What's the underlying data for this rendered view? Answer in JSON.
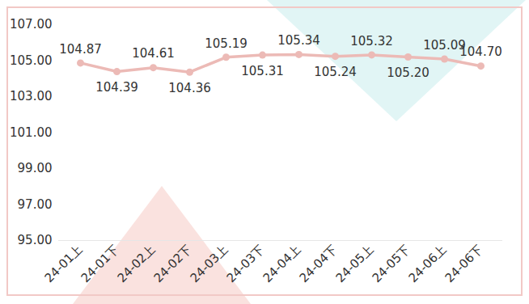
{
  "chart_data": {
    "type": "line",
    "categories": [
      "24-01上",
      "24-01下",
      "24-02上",
      "24-02下",
      "24-03上",
      "24-03下",
      "24-04上",
      "24-04下",
      "24-05上",
      "24-05下",
      "24-06上",
      "24-06下"
    ],
    "values": [
      104.87,
      104.39,
      104.61,
      104.36,
      105.19,
      105.31,
      105.34,
      105.24,
      105.32,
      105.2,
      105.09,
      104.7
    ],
    "value_labels": [
      "104.87",
      "104.39",
      "104.61",
      "104.36",
      "105.19",
      "105.31",
      "105.34",
      "105.24",
      "105.32",
      "105.20",
      "105.09",
      "104.70"
    ],
    "color": "#ecbab6",
    "marker": "circle",
    "ylim": [
      95,
      107
    ],
    "yticks": [
      {
        "value": 95,
        "label": "95.00"
      },
      {
        "value": 97,
        "label": "97.00"
      },
      {
        "value": 99,
        "label": "99.00"
      },
      {
        "value": 101,
        "label": "101.00"
      },
      {
        "value": 103,
        "label": "103.00"
      },
      {
        "value": 105,
        "label": "105.00"
      },
      {
        "value": 107,
        "label": "107.00"
      }
    ],
    "grid": false,
    "data_labels": true
  }
}
